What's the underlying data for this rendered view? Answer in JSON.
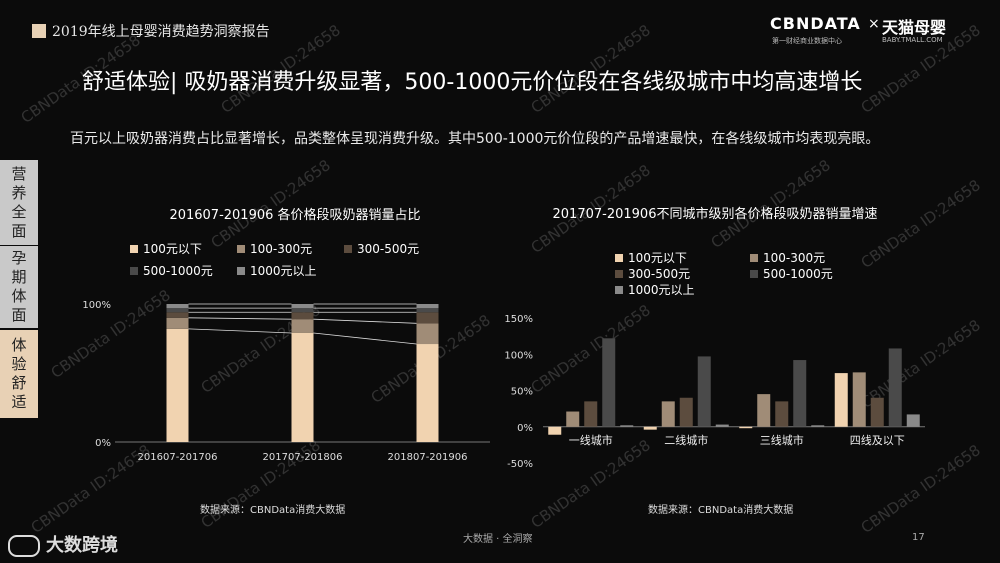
{
  "header": {
    "report_name": "2019年线上母婴消费趋势洞察报告",
    "logo_left": "CBNDATA",
    "logo_left_sub": "第一财经商业数据中心",
    "logo_sep": "×",
    "logo_right": "天猫母婴",
    "logo_right_sub": "BABY.TMALL.COM"
  },
  "title": "舒适体验| 吸奶器消费升级显著，500-1000元价位段在各线级城市中均高速增长",
  "intro": "百元以上吸奶器消费占比显著增长，品类整体呈现消费升级。其中500-1000元价位段的产品增速最快，在各线级城市均表现亮眼。",
  "side_tabs": [
    "营养全面",
    "孕期体面",
    "体验舒适"
  ],
  "watermark": "CBNData ID:24658",
  "chart_data": [
    {
      "type": "bar",
      "stacked": true,
      "title": "201607-201906  各价格段吸奶器销量占比",
      "categories": [
        "201607-201706",
        "201707-201806",
        "201807-201906"
      ],
      "series": [
        {
          "name": "100元以下",
          "color": "#f1d3b0",
          "values": [
            82,
            79,
            71
          ]
        },
        {
          "name": "100-300元",
          "color": "#a08c77",
          "values": [
            8,
            10,
            15
          ]
        },
        {
          "name": "300-500元",
          "color": "#5c4c3e",
          "values": [
            4,
            5,
            8
          ]
        },
        {
          "name": "500-1000元",
          "color": "#4a4a4a",
          "values": [
            3,
            3,
            3
          ]
        },
        {
          "name": "1000元以上",
          "color": "#8a8a8a",
          "values": [
            3,
            3,
            3
          ]
        }
      ],
      "ytick_labels": [
        "0%",
        "100%"
      ],
      "ylim": [
        0,
        100
      ]
    },
    {
      "type": "bar",
      "title": "201707-201906不同城市级别各价格段吸奶器销量增速",
      "categories": [
        "一线城市",
        "二线城市",
        "三线城市",
        "四线及以下"
      ],
      "series": [
        {
          "name": "100元以下",
          "color": "#f1d3b0",
          "values": [
            -11,
            -4,
            -2,
            74
          ]
        },
        {
          "name": "100-300元",
          "color": "#a08c77",
          "values": [
            21,
            35,
            45,
            75
          ]
        },
        {
          "name": "300-500元",
          "color": "#5c4c3e",
          "values": [
            35,
            40,
            35,
            40
          ]
        },
        {
          "name": "500-1000元",
          "color": "#4a4a4a",
          "values": [
            122,
            97,
            92,
            108
          ]
        },
        {
          "name": "1000元以上",
          "color": "#8a8a8a",
          "values": [
            2,
            3,
            2,
            17
          ]
        }
      ],
      "ytick_labels": [
        "-50%",
        "0%",
        "50%",
        "100%",
        "150%"
      ],
      "ylim": [
        -50,
        150
      ]
    }
  ],
  "source_left": "数据来源：CBNData消费大数据",
  "source_right": "数据来源：CBNData消费大数据",
  "footer": {
    "center": "大数据 · 全洞察",
    "page_number": "17",
    "brand": "大数跨境"
  }
}
